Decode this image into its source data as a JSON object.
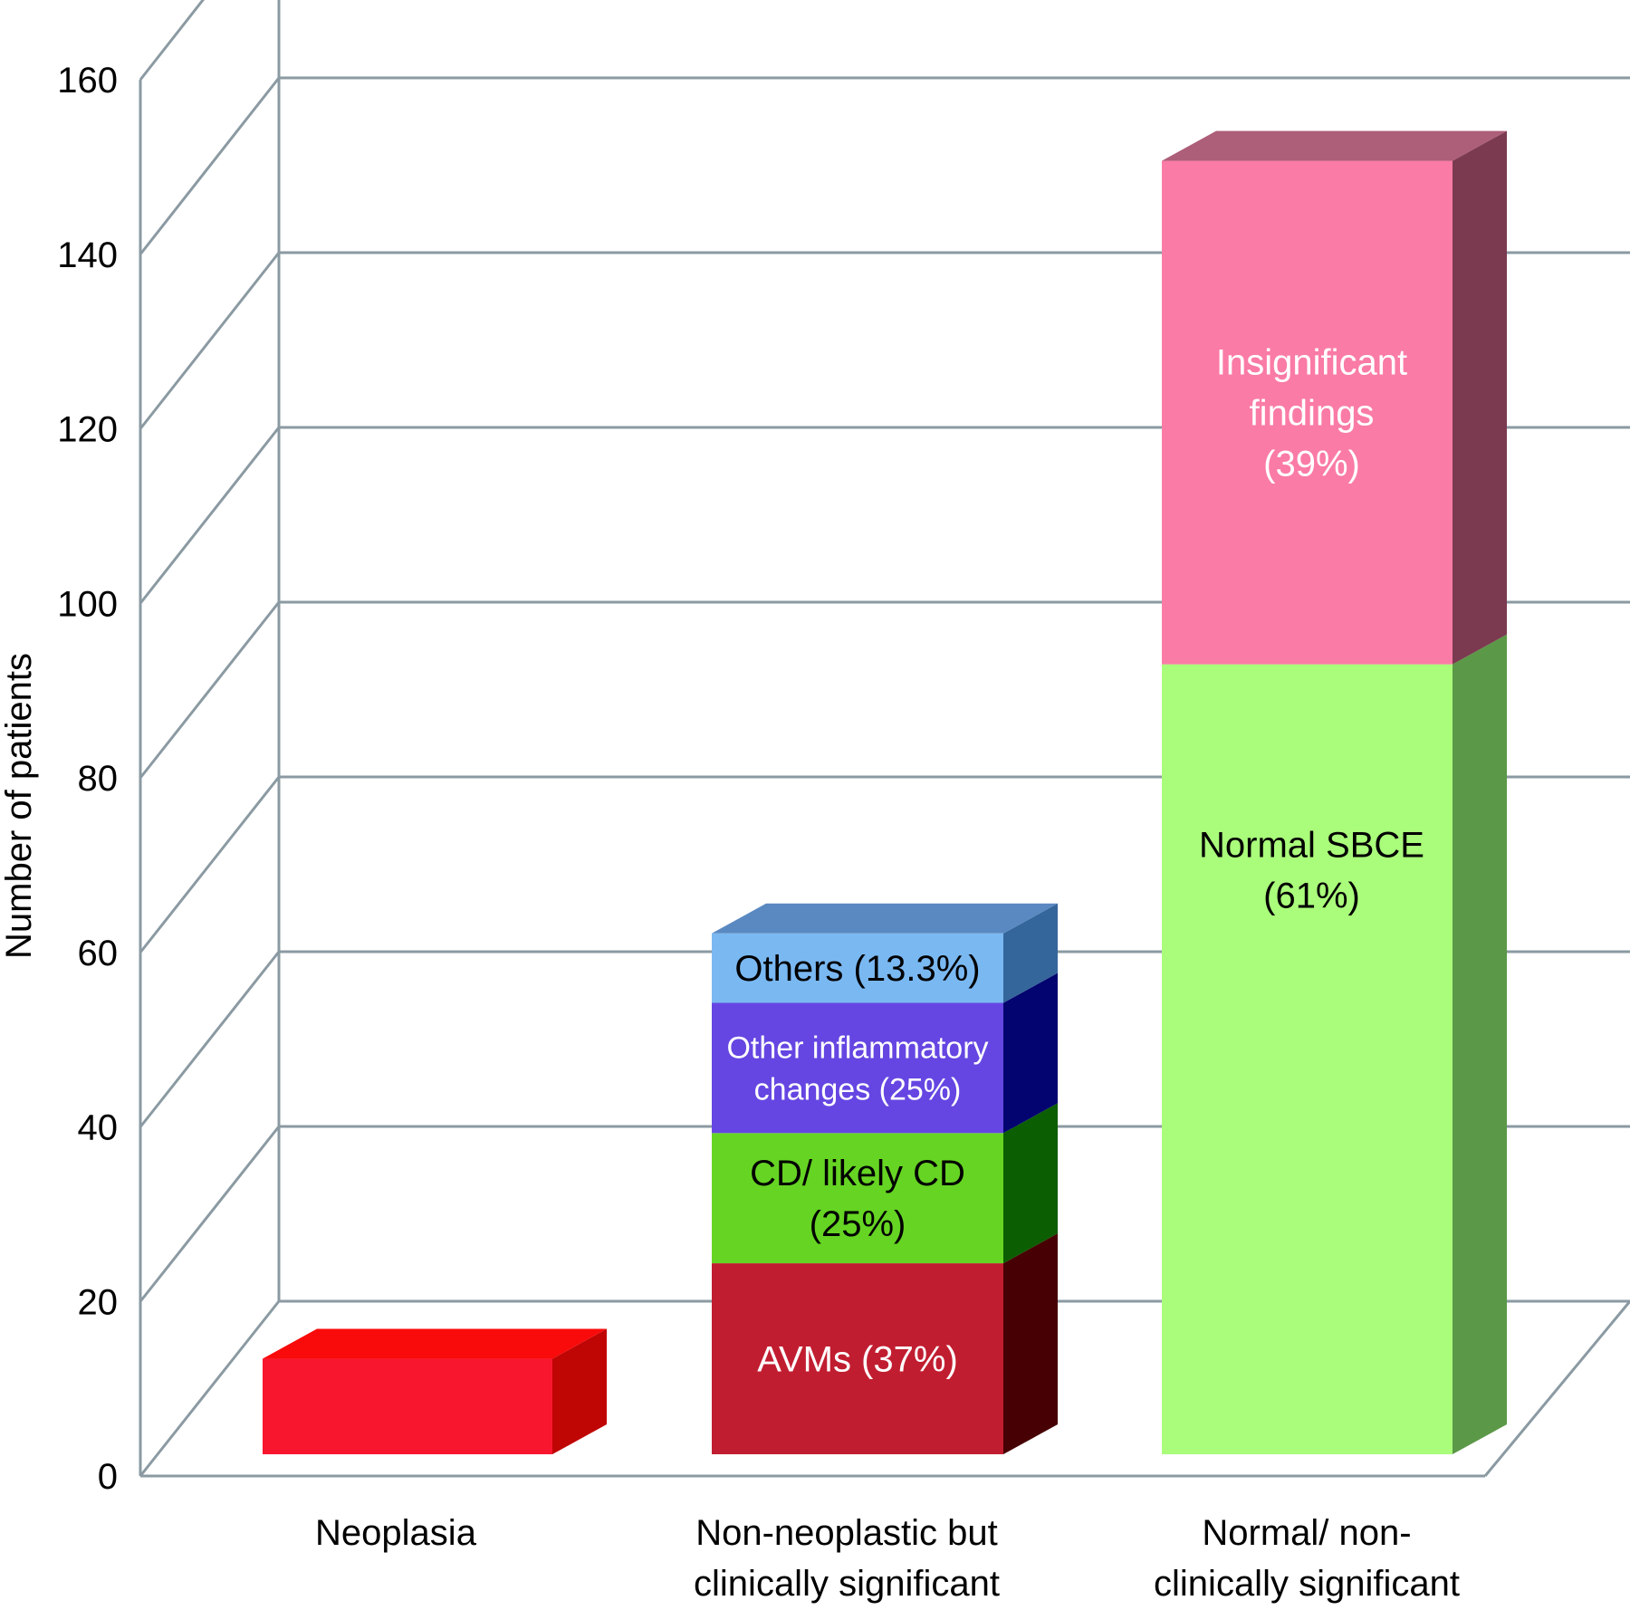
{
  "chart_data": {
    "type": "bar",
    "stacked": true,
    "three_d": true,
    "ylabel": "Number of patients",
    "xlabel": "",
    "ylim": [
      0,
      160
    ],
    "yticks": [
      "0",
      "20",
      "40",
      "60",
      "80",
      "100",
      "120",
      "140",
      "160"
    ],
    "grid": true,
    "categories": [
      {
        "lines": [
          "Neoplasia"
        ]
      },
      {
        "lines": [
          "Non-neoplastic but",
          "clinically significant"
        ]
      },
      {
        "lines": [
          "Normal/ non-",
          "clinically significant"
        ]
      }
    ],
    "bars": [
      {
        "segments": [
          {
            "value": 11,
            "color": "#f8162f",
            "top_color": "#f90b0b",
            "side_color": "#c00505",
            "label_lines": []
          }
        ]
      },
      {
        "segments": [
          {
            "value": 22,
            "color": "#c11d30",
            "top_color": "#c11d30",
            "side_color": "#470003",
            "label_lines": [
              "AVMs (37%)"
            ],
            "label_color": "#ffffff"
          },
          {
            "value": 15,
            "color": "#66d423",
            "top_color": "#66d423",
            "side_color": "#0b5e02",
            "label_lines": [
              "CD/ likely CD",
              "(25%)"
            ],
            "label_color": "#000000"
          },
          {
            "value": 15,
            "color": "#6546e2",
            "top_color": "#6546e2",
            "side_color": "#03046f",
            "label_lines": [
              "Other inflammatory",
              "changes (25%)"
            ],
            "label_color": "#ffffff",
            "label_small": true
          },
          {
            "value": 8,
            "color": "#7ab8f2",
            "top_color": "#5a89c2",
            "side_color": "#35669b",
            "label_lines": [
              "Others (13.3%)"
            ],
            "label_color": "#000000"
          }
        ]
      },
      {
        "segments": [
          {
            "value": 91,
            "color": "#aafc7b",
            "top_color": "#aafc7b",
            "side_color": "#5b9847",
            "label_lines": [
              "Normal SBCE",
              "(61%)"
            ],
            "label_color": "#000000"
          },
          {
            "value": 58,
            "color": "#fa7ba6",
            "top_color": "#ad5e79",
            "side_color": "#7b3a50",
            "label_lines": [
              "Insignificant",
              "findings",
              "(39%)"
            ],
            "label_color": "#ffffff"
          }
        ]
      }
    ],
    "colors": {
      "grid": "#8b9aa2",
      "background": "#ffffff",
      "text": "#000000"
    }
  }
}
